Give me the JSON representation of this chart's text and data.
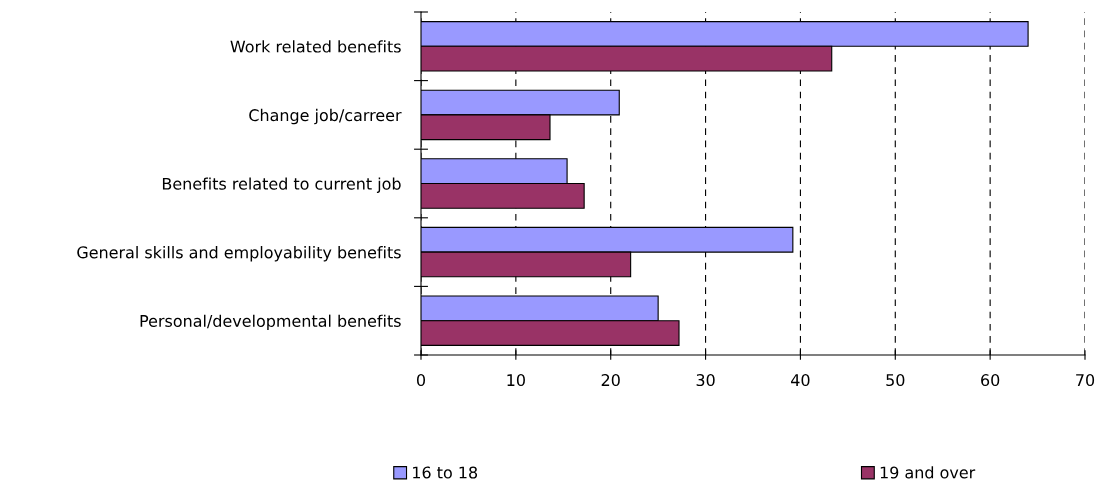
{
  "chart_data": {
    "type": "bar",
    "orientation": "horizontal",
    "categories": [
      "Work related benefits",
      "Change job/carreer",
      "Benefits related to current job",
      "General skills and employability benefits",
      "Personal/developmental benefits"
    ],
    "series": [
      {
        "name": "16 to 18",
        "color": "#9999ff",
        "values": [
          64.0,
          20.9,
          15.4,
          39.2,
          25.0
        ]
      },
      {
        "name": "19 and over",
        "color": "#993366",
        "values": [
          43.3,
          13.6,
          17.2,
          22.1,
          27.2
        ]
      }
    ],
    "xlim": [
      0,
      70
    ],
    "xticks": [
      0,
      10,
      20,
      30,
      40,
      50,
      60,
      70
    ],
    "grid": "x",
    "legend": "bottom"
  }
}
